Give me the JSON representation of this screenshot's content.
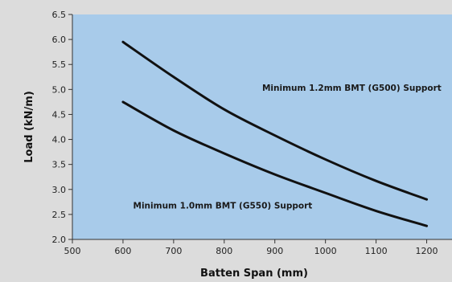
{
  "chart_data": {
    "type": "line",
    "xlabel": "Batten Span (mm)",
    "ylabel": "Load (kN/m)",
    "xlim": [
      500,
      1250
    ],
    "ylim": [
      2.0,
      6.5
    ],
    "xticks": [
      500,
      600,
      700,
      800,
      900,
      1000,
      1100,
      1200
    ],
    "xtick_labels": [
      "500",
      "600",
      "700",
      "800",
      "900",
      "1000",
      "1100",
      "1200"
    ],
    "yticks": [
      2.0,
      2.5,
      3.0,
      3.5,
      4.0,
      4.5,
      5.0,
      5.5,
      6.0,
      6.5
    ],
    "ytick_labels": [
      "2.0",
      "2.5",
      "3.0",
      "3.5",
      "4.0",
      "4.5",
      "5.0",
      "5.5",
      "6.0",
      "6.5"
    ],
    "grid": false,
    "series": [
      {
        "name": "Minimum 1.2mm BMT (G500) Support",
        "x": [
          600,
          700,
          800,
          900,
          1000,
          1100,
          1200
        ],
        "y": [
          5.95,
          5.25,
          4.6,
          4.08,
          3.6,
          3.17,
          2.8
        ]
      },
      {
        "name": "Minimum 1.0mm BMT (G550) Support",
        "x": [
          600,
          700,
          800,
          900,
          1000,
          1100,
          1200
        ],
        "y": [
          4.75,
          4.18,
          3.72,
          3.3,
          2.93,
          2.57,
          2.27
        ]
      }
    ],
    "annotations": [
      {
        "text": "Minimum 1.2mm BMT (G500) Support",
        "x": 1052,
        "y": 4.97
      },
      {
        "text": "Minimum 1.0mm BMT (G550) Support",
        "x": 797,
        "y": 2.62
      }
    ],
    "colors": {
      "plot_background": "#a8cbea",
      "page_background": "#dcdcdc",
      "line": "#111111",
      "axis": "#333333"
    }
  }
}
